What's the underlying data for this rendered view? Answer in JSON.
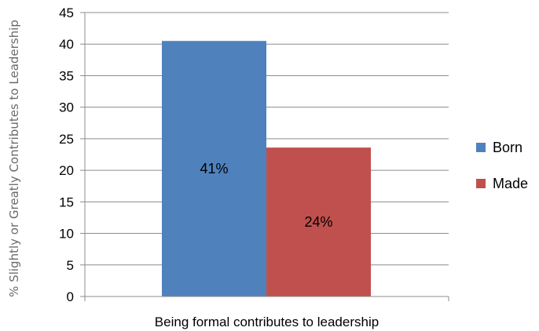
{
  "chart_data": {
    "type": "bar",
    "xlabel": "Being formal contributes to leadership",
    "ylabel": "% Slightly or Greatly Contributes to Leadership",
    "ylim": [
      0,
      45
    ],
    "yticks": [
      0,
      5,
      10,
      15,
      20,
      25,
      30,
      35,
      40,
      45
    ],
    "grid": true,
    "legend_position": "right",
    "categories": [
      "Being formal contributes to leadership"
    ],
    "series": [
      {
        "name": "Born",
        "values": [
          40.5
        ],
        "data_label": "41%",
        "color": "#4f81bd"
      },
      {
        "name": "Made",
        "values": [
          23.6
        ],
        "data_label": "24%",
        "color": "#c0504d"
      }
    ]
  }
}
